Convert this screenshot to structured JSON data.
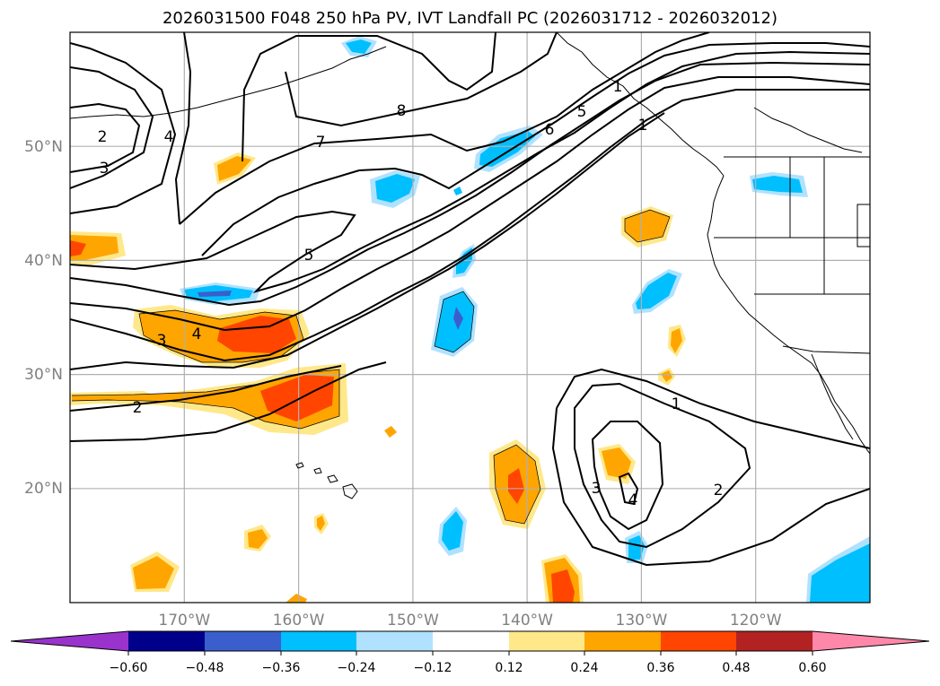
{
  "title": "2026031500 F048 250 hPa PV, IVT Landfall PC (2026031712 - 2026032012)",
  "map": {
    "projection": "equirectangular",
    "lon_range": [
      -180,
      -110
    ],
    "lat_range": [
      10,
      60
    ],
    "gridlines": true,
    "lon_labels": [
      {
        "lon": -170,
        "text": "170°W"
      },
      {
        "lon": -160,
        "text": "160°W"
      },
      {
        "lon": -150,
        "text": "150°W"
      },
      {
        "lon": -140,
        "text": "140°W"
      },
      {
        "lon": -130,
        "text": "130°W"
      },
      {
        "lon": -120,
        "text": "120°W"
      }
    ],
    "lat_labels": [
      {
        "lat": 50,
        "text": "50°N"
      },
      {
        "lat": 40,
        "text": "40°N"
      },
      {
        "lat": 30,
        "text": "30°N"
      },
      {
        "lat": 20,
        "text": "20°N"
      }
    ],
    "contour_labels": [
      "8",
      "7",
      "6",
      "5",
      "5",
      "4",
      "3",
      "4",
      "3",
      "2",
      "2",
      "1",
      "1",
      "2",
      "3",
      "4",
      "1"
    ]
  },
  "colorbar": {
    "ticks": [
      "−0.60",
      "−0.48",
      "−0.36",
      "−0.24",
      "−0.12",
      "0.12",
      "0.24",
      "0.36",
      "0.48",
      "0.60"
    ],
    "colors": [
      "#9933cc",
      "#00008b",
      "#3a5fcd",
      "#00bfff",
      "#b0e2ff",
      "#ffffff",
      "#ffe88a",
      "#ffa500",
      "#ff4500",
      "#b22222",
      "#ff88aa"
    ],
    "extend": "both"
  }
}
